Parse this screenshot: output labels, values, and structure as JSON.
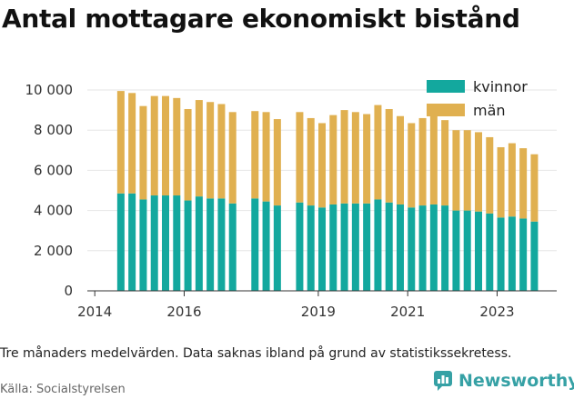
{
  "title": "Antal mottagare ekonomiskt bistånd",
  "note": "Tre månaders medelvärden. Data saknas ibland på grund av statistikssekretess.",
  "source": "Källa: Socialstyrelsen",
  "brand": "Newsworthy",
  "brand_icon": "newsworthy-logo-icon",
  "chart_data": {
    "type": "bar",
    "stacked": true,
    "xlim": [
      "2013-11",
      "2024-05"
    ],
    "ylim": [
      0,
      10000
    ],
    "y_ticks": [
      "0",
      "2 000",
      "4 000",
      "6 000",
      "8 000",
      "10 000"
    ],
    "x_ticks": [
      "2014",
      "2016",
      "2019",
      "2021",
      "2023"
    ],
    "legend_position": "top-right",
    "grid": true,
    "categories": [
      "2014-08",
      "2014-11",
      "2015-02",
      "2015-05",
      "2015-08",
      "2015-11",
      "2016-02",
      "2016-05",
      "2016-08",
      "2016-11",
      "2017-02",
      "2017-08",
      "2017-11",
      "2018-02",
      "2018-08",
      "2018-11",
      "2019-02",
      "2019-05",
      "2019-08",
      "2019-11",
      "2020-02",
      "2020-05",
      "2020-08",
      "2020-11",
      "2021-02",
      "2021-05",
      "2021-08",
      "2021-11",
      "2022-02",
      "2022-05",
      "2022-08",
      "2022-11",
      "2023-02",
      "2023-05",
      "2023-08",
      "2023-11"
    ],
    "series": [
      {
        "name": "kvinnor",
        "color": "#13a89e",
        "values": [
          4850,
          4850,
          4550,
          4750,
          4750,
          4750,
          4500,
          4700,
          4600,
          4600,
          4350,
          4600,
          4450,
          4250,
          4400,
          4250,
          4150,
          4300,
          4350,
          4350,
          4350,
          4550,
          4400,
          4300,
          4150,
          4250,
          4300,
          4250,
          4000,
          4000,
          3950,
          3850,
          3650,
          3700,
          3600,
          3450
        ]
      },
      {
        "name": "män",
        "color": "#e0b050",
        "values": [
          5100,
          5000,
          4650,
          4950,
          4950,
          4850,
          4550,
          4800,
          4800,
          4700,
          4550,
          4350,
          4450,
          4300,
          4500,
          4350,
          4200,
          4450,
          4650,
          4550,
          4450,
          4700,
          4650,
          4400,
          4200,
          4350,
          4450,
          4250,
          4000,
          4000,
          3950,
          3800,
          3500,
          3650,
          3500,
          3350
        ]
      }
    ]
  }
}
